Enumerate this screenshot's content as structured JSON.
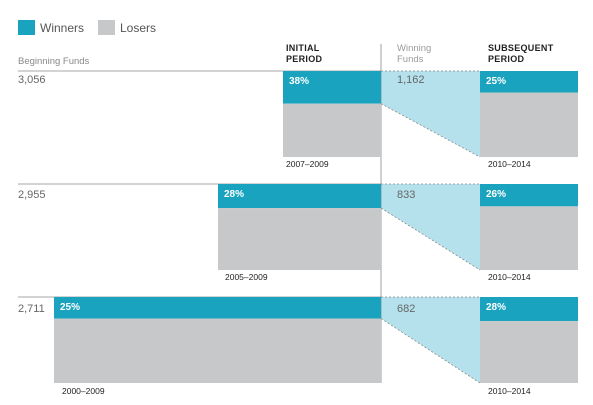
{
  "legend": {
    "winners_label": "Winners",
    "losers_label": "Losers"
  },
  "headers": {
    "beginning_funds": "Beginning Funds",
    "initial_period": [
      "INITIAL",
      "PERIOD"
    ],
    "winning_funds": [
      "Winning",
      "Funds"
    ],
    "subsequent_period": [
      "SUBSEQUENT",
      "PERIOD"
    ]
  },
  "colors": {
    "winners": "#1aa3be",
    "losers": "#c7c8ca",
    "flow": "#b5e1ec",
    "line": "#8a8a8a"
  },
  "chart_data": {
    "type": "bar",
    "rows": [
      {
        "beginning_funds": "3,056",
        "initial_period": "2007–2009",
        "initial_winner_pct": "38%",
        "initial_winner_fraction": 0.38,
        "winning_funds": "1,162",
        "subsequent_period": "2010–2014",
        "subsequent_winner_pct": "25%",
        "subsequent_winner_fraction": 0.25
      },
      {
        "beginning_funds": "2,955",
        "initial_period": "2005–2009",
        "initial_winner_pct": "28%",
        "initial_winner_fraction": 0.28,
        "winning_funds": "833",
        "subsequent_period": "2010–2014",
        "subsequent_winner_pct": "26%",
        "subsequent_winner_fraction": 0.26
      },
      {
        "beginning_funds": "2,711",
        "initial_period": "2000–2009",
        "initial_winner_pct": "25%",
        "initial_winner_fraction": 0.25,
        "winning_funds": "682",
        "subsequent_period": "2010–2014",
        "subsequent_winner_pct": "28%",
        "subsequent_winner_fraction": 0.28
      }
    ]
  }
}
